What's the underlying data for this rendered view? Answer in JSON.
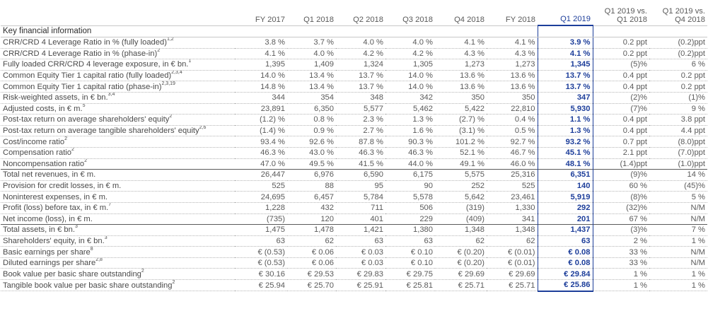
{
  "columns": [
    "FY 2017",
    "Q1 2018",
    "Q2 2018",
    "Q3 2018",
    "Q4 2018",
    "FY 2018",
    "Q1 2019",
    "Q1 2019 vs. Q1 2018",
    "Q1 2019 vs. Q4 2018"
  ],
  "section_title": "Key financial information",
  "rows": [
    {
      "label": "CRR/CRD 4 Leverage Ratio in % (fully loaded)",
      "sup": "1,2",
      "values": [
        "3.8 %",
        "3.7 %",
        "4.0 %",
        "4.0 %",
        "4.1 %",
        "4.1 %",
        "3.9 %",
        "0.2 ppt",
        "(0.2)ppt"
      ]
    },
    {
      "label": "CRR/CRD 4 Leverage Ratio in % (phase-in)",
      "sup": "2",
      "values": [
        "4.1 %",
        "4.0 %",
        "4.2 %",
        "4.2 %",
        "4.3 %",
        "4.3 %",
        "4.1 %",
        "0.2 ppt",
        "(0.2)ppt"
      ]
    },
    {
      "label": "Fully loaded CRR/CRD 4 leverage exposure, in € bn.",
      "sup": "1",
      "values": [
        "1,395",
        "1,409",
        "1,324",
        "1,305",
        "1,273",
        "1,273",
        "1,345",
        "(5)%",
        "6 %"
      ]
    },
    {
      "label": "Common Equity Tier 1 capital ratio (fully loaded)",
      "sup": "2,3,4",
      "values": [
        "14.0 %",
        "13.4 %",
        "13.7 %",
        "14.0 %",
        "13.6 %",
        "13.6 %",
        "13.7 %",
        "0.4 ppt",
        "0.2 ppt"
      ]
    },
    {
      "label": "Common Equity Tier 1 capital ratio (phase-in)",
      "sup": "2,3,19",
      "values": [
        "14.8 %",
        "13.4 %",
        "13.7 %",
        "14.0 %",
        "13.6 %",
        "13.6 %",
        "13.7 %",
        "0.4 ppt",
        "0.2 ppt"
      ]
    },
    {
      "label": "Risk-weighted assets, in € bn.",
      "sup": "3,4",
      "values": [
        "344",
        "354",
        "348",
        "342",
        "350",
        "350",
        "347",
        "(2)%",
        "(1)%"
      ]
    },
    {
      "label": "Adjusted costs, in € m.",
      "sup": "5",
      "values": [
        "23,891",
        "6,350",
        "5,577",
        "5,462",
        "5,422",
        "22,810",
        "5,930",
        "(7)%",
        "9 %"
      ]
    },
    {
      "label": "Post-tax return on average shareholders' equity",
      "sup": "2",
      "values": [
        "(1.2) %",
        "0.8 %",
        "2.3 %",
        "1.3 %",
        "(2.7) %",
        "0.4 %",
        "1.1 %",
        "0.4 ppt",
        "3.8 ppt"
      ]
    },
    {
      "label": "Post-tax return on average tangible shareholders' equity",
      "sup": "2,6",
      "values": [
        "(1.4) %",
        "0.9 %",
        "2.7 %",
        "1.6 %",
        "(3.1) %",
        "0.5 %",
        "1.3 %",
        "0.4 ppt",
        "4.4 ppt"
      ]
    },
    {
      "label": "Cost/income ratio",
      "sup": "2",
      "values": [
        "93.4 %",
        "92.6 %",
        "87.8 %",
        "90.3 %",
        "101.2 %",
        "92.7 %",
        "93.2 %",
        "0.7 ppt",
        "(8.0)ppt"
      ]
    },
    {
      "label": "Compensation ratio",
      "sup": "2",
      "values": [
        "46.3 %",
        "43.0 %",
        "46.3 %",
        "46.3 %",
        "52.1 %",
        "46.7 %",
        "45.1 %",
        "2.1 ppt",
        "(7.0)ppt"
      ]
    },
    {
      "label": "Noncompensation ratio",
      "sup": "2",
      "values": [
        "47.0 %",
        "49.5 %",
        "41.5 %",
        "44.0 %",
        "49.1 %",
        "46.0 %",
        "48.1 %",
        "(1.4)ppt",
        "(1.0)ppt"
      ]
    },
    {
      "label": "Total net revenues, in € m.",
      "sup": "",
      "group": true,
      "values": [
        "26,447",
        "6,976",
        "6,590",
        "6,175",
        "5,575",
        "25,316",
        "6,351",
        "(9)%",
        "14 %"
      ]
    },
    {
      "label": "Provision for credit losses, in € m.",
      "sup": "",
      "values": [
        "525",
        "88",
        "95",
        "90",
        "252",
        "525",
        "140",
        "60 %",
        "(45)%"
      ]
    },
    {
      "label": "Noninterest expenses, in € m.",
      "sup": "",
      "values": [
        "24,695",
        "6,457",
        "5,784",
        "5,578",
        "5,642",
        "23,461",
        "5,919",
        "(8)%",
        "5 %"
      ]
    },
    {
      "label": "Profit (loss) before tax, in € m.",
      "sup": "7",
      "values": [
        "1,228",
        "432",
        "711",
        "506",
        "(319)",
        "1,330",
        "292",
        "(32)%",
        "N/M"
      ]
    },
    {
      "label": "Net income (loss), in € m.",
      "sup": "",
      "values": [
        "(735)",
        "120",
        "401",
        "229",
        "(409)",
        "341",
        "201",
        "67 %",
        "N/M"
      ]
    },
    {
      "label": "Total assets, in € bn.",
      "sup": "3",
      "group": true,
      "values": [
        "1,475",
        "1,478",
        "1,421",
        "1,380",
        "1,348",
        "1,348",
        "1,437",
        "(3)%",
        "7 %"
      ]
    },
    {
      "label": "Shareholders' equity, in € bn.",
      "sup": "3",
      "values": [
        "63",
        "62",
        "63",
        "63",
        "62",
        "62",
        "63",
        "2 %",
        "1 %"
      ]
    },
    {
      "label": "Basic earnings per share",
      "sup": "8",
      "values": [
        "€ (0.53)",
        "€ 0.06",
        "€ 0.03",
        "€ 0.10",
        "€ (0.20)",
        "€ (0.01)",
        "€ 0.08",
        "33 %",
        "N/M"
      ]
    },
    {
      "label": "Diluted earnings per share",
      "sup": "2,8",
      "values": [
        "€ (0.53)",
        "€ 0.06",
        "€ 0.03",
        "€ 0.10",
        "€ (0.20)",
        "€ (0.01)",
        "€ 0.08",
        "33 %",
        "N/M"
      ]
    },
    {
      "label": "Book value per basic share outstanding",
      "sup": "2",
      "values": [
        "€ 30.16",
        "€ 29.53",
        "€ 29.83",
        "€ 29.75",
        "€ 29.69",
        "€ 29.69",
        "€ 29.84",
        "1 %",
        "1 %"
      ]
    },
    {
      "label": "Tangible book value per basic share outstanding",
      "sup": "2",
      "values": [
        "€ 25.94",
        "€ 25.70",
        "€ 25.91",
        "€ 25.81",
        "€ 25.71",
        "€ 25.71",
        "€ 25.86",
        "1 %",
        "1 %"
      ]
    }
  ]
}
